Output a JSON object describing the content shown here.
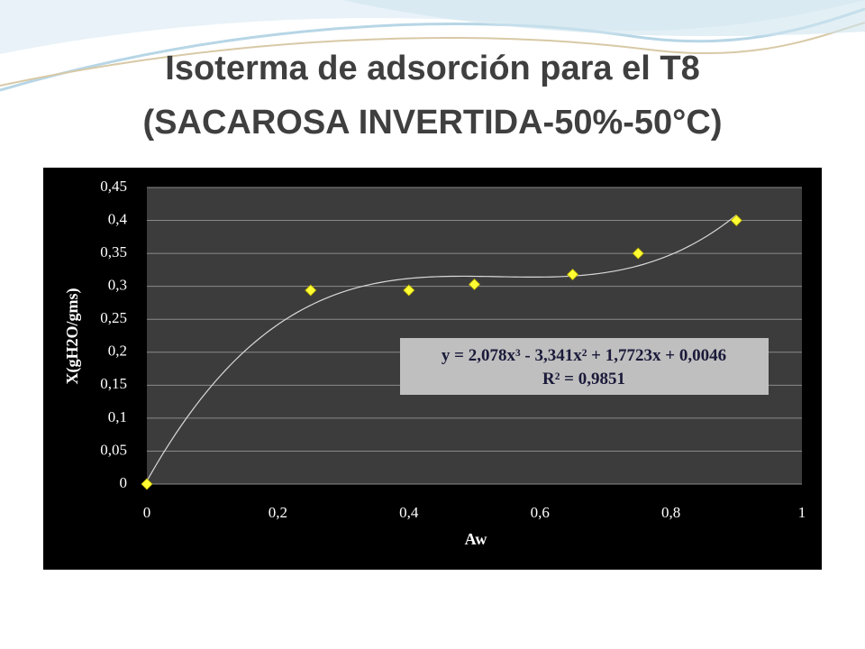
{
  "title": "Isoterma de adsorción para el T8",
  "subtitle": "(SACAROSA INVERTIDA-50%-50°C)",
  "chart_data": {
    "type": "scatter",
    "x_label": "Aw",
    "y_label": "X(gH2O/gms)",
    "x": [
      0,
      0.25,
      0.4,
      0.5,
      0.65,
      0.75,
      0.9
    ],
    "series": [
      {
        "color": "#ffff33",
        "values": [
          0,
          0.294,
          0.294,
          0.303,
          0.318,
          0.35,
          0.4
        ]
      }
    ],
    "xlim": [
      0,
      1
    ],
    "xticks": [
      0,
      {
        "value": 0.2,
        "label": "0,2"
      },
      {
        "value": 0.4,
        "label": "0,4"
      },
      {
        "value": 0.6,
        "label": "0,6"
      },
      {
        "value": 0.8,
        "label": "0,8"
      },
      1
    ],
    "ylim": [
      0,
      0.45
    ],
    "yticks": [
      0,
      {
        "value": 0.05,
        "label": "0,05"
      },
      {
        "value": 0.1,
        "label": "0,1"
      },
      {
        "value": 0.15,
        "label": "0,15"
      },
      {
        "value": 0.2,
        "label": "0,2"
      },
      {
        "value": 0.25,
        "label": "0,25"
      },
      {
        "value": 0.3,
        "label": "0,3"
      },
      {
        "value": 0.35,
        "label": "0,35"
      },
      {
        "value": 0.4,
        "label": "0,4"
      },
      {
        "value": 0.45,
        "label": "0,45"
      }
    ],
    "grid": true,
    "trendline": {
      "coefficients": [
        2.078,
        -3.341,
        1.7723,
        0.0046
      ],
      "equation": "y = 2,078x³ - 3,341x² + 1,7723x + 0,0046",
      "r_squared": "R² = 0,9851",
      "color": "#d9d9d9"
    }
  }
}
